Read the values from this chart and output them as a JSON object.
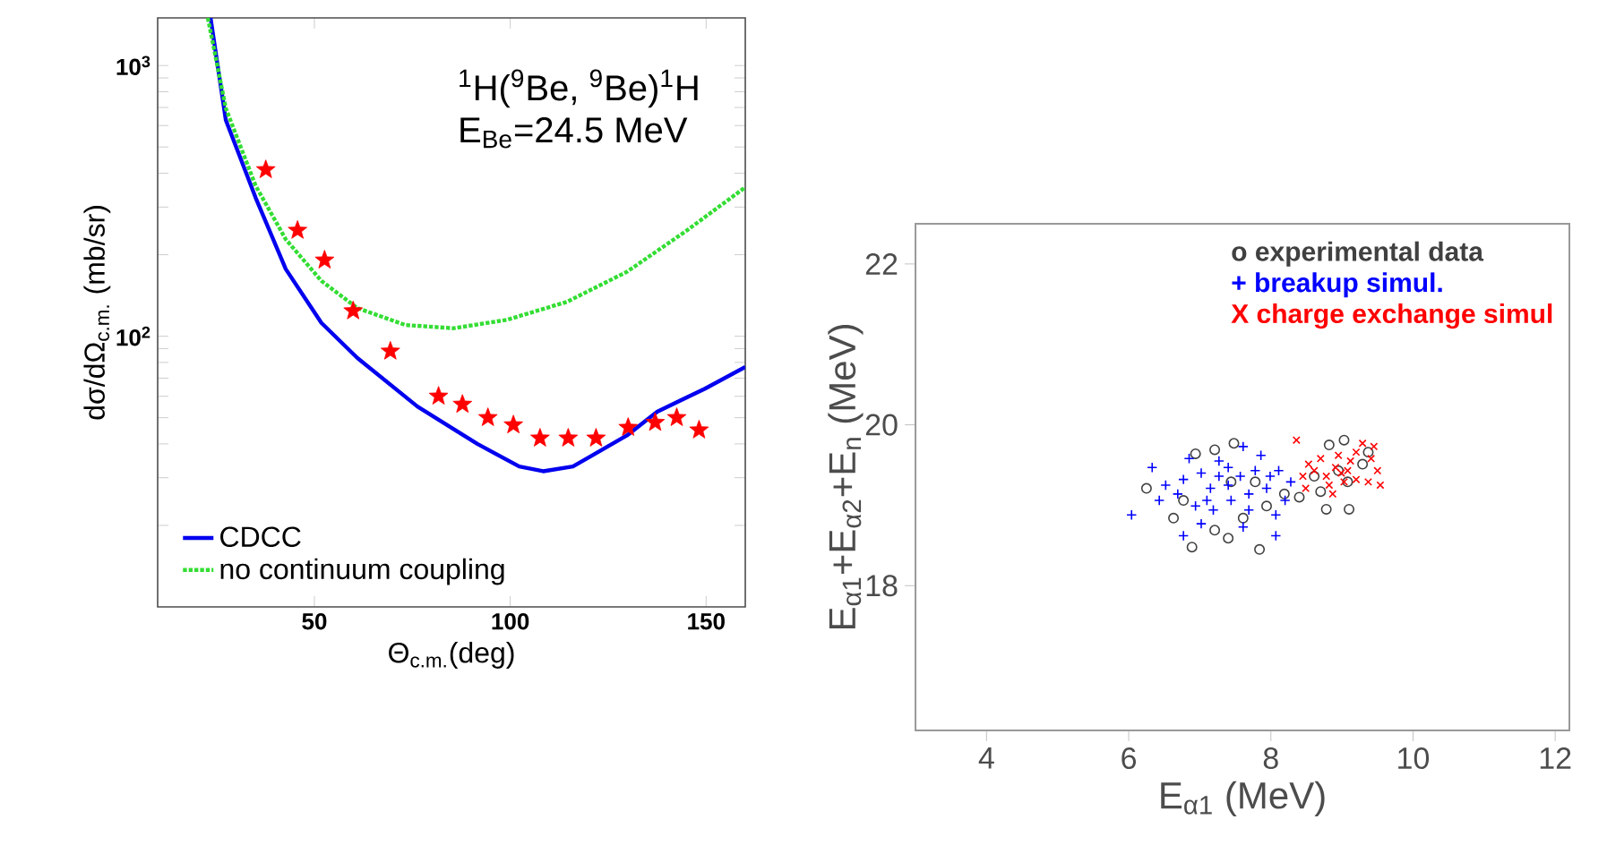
{
  "chart_data": [
    {
      "type": "line",
      "log": "y",
      "xlabel": "Θ$_{c.m.}$(deg)",
      "ylabel": "dσ/dΩ$_{c.m.}$ (mb/sr)",
      "annotations": [
        "$^{1}$H($^{9}$Be, $^{9}$Be)$^{1}$H",
        "E$_{Be}$=24.5 MeV"
      ],
      "xlim": [
        10,
        160
      ],
      "ylim": [
        10,
        1500
      ],
      "xticks": [
        50,
        100,
        150
      ],
      "yticks": [
        {
          "value": 20,
          "label": null
        },
        {
          "value": 30,
          "label": null
        },
        {
          "value": 40,
          "label": null
        },
        {
          "value": 50,
          "label": null
        },
        {
          "value": 60,
          "label": null
        },
        {
          "value": 70,
          "label": null
        },
        {
          "value": 80,
          "label": null
        },
        {
          "value": 90,
          "label": null
        },
        {
          "value": 100,
          "label": "10$^{2}$"
        },
        {
          "value": 200,
          "label": null
        },
        {
          "value": 300,
          "label": null
        },
        {
          "value": 400,
          "label": null
        },
        {
          "value": 500,
          "label": null
        },
        {
          "value": 600,
          "label": null
        },
        {
          "value": 700,
          "label": null
        },
        {
          "value": 800,
          "label": null
        },
        {
          "value": 900,
          "label": null
        },
        {
          "value": 1000,
          "label": "10$^{3}$"
        }
      ],
      "legend": "bottom left",
      "series": [
        {
          "name": "CDCC",
          "type": "line",
          "line_style": "solid",
          "color": "#0000ee",
          "x": [
            23.5,
            27.4,
            35,
            42.7,
            51.8,
            61,
            76.3,
            91.6,
            102.3,
            108.4,
            116,
            129.8,
            137.5,
            149.7,
            160
          ],
          "values": [
            1500,
            628,
            325,
            177,
            112,
            83,
            55,
            40,
            33,
            31.7,
            33,
            43,
            52.6,
            64,
            77
          ]
        },
        {
          "name": "no continuum coupling",
          "type": "line",
          "line_style": "dotted",
          "color": "#33dd33",
          "x": [
            22.8,
            27.4,
            35,
            42.7,
            51.8,
            61,
            73.2,
            85.5,
            99.2,
            114.5,
            129.8,
            145.1,
            160
          ],
          "values": [
            1500,
            695,
            360,
            228,
            160,
            127,
            110,
            107,
            115,
            134,
            173,
            246,
            355
          ]
        },
        {
          "type": "scatter",
          "marker": "star",
          "color": "#ff0000",
          "x": [
            37.6,
            45.7,
            52.6,
            59.9,
            69.4,
            81.7,
            87.8,
            94.3,
            100.8,
            107.6,
            114.8,
            121.9,
            130.1,
            137,
            142.5,
            148.2
          ],
          "values": [
            412,
            246,
            191,
            124,
            88,
            60,
            56,
            50,
            47,
            42,
            42,
            42,
            46,
            48,
            50,
            45
          ]
        }
      ]
    },
    {
      "type": "scatter",
      "xlabel": "E$_{α1}$ (MeV)",
      "ylabel": "E$_{α1}$+E$_{α2}$+E$_{n}$ (MeV)",
      "xlim": [
        3,
        12.2
      ],
      "ylim": [
        16.2,
        22.5
      ],
      "xticks": [
        4,
        6,
        8,
        10,
        12
      ],
      "yticks": [
        18,
        20,
        22
      ],
      "legend": "top right",
      "series": [
        {
          "name": "o experimental data",
          "marker": "circle",
          "color": "#404040",
          "x": [
            6.25,
            6.63,
            6.94,
            7.21,
            7.48,
            6.89,
            7.4,
            7.84,
            7.21,
            7.61,
            7.94,
            8.19,
            8.4,
            8.82,
            9.03,
            8.7,
            8.78,
            9.1,
            9.08,
            9.29,
            9.37,
            6.77,
            7.44,
            7.78,
            8.61,
            8.95
          ],
          "values": [
            19.21,
            18.84,
            19.64,
            19.69,
            19.77,
            18.48,
            18.59,
            18.45,
            18.69,
            18.84,
            18.99,
            19.14,
            19.1,
            19.75,
            19.81,
            19.17,
            18.95,
            18.95,
            19.29,
            19.51,
            19.66,
            19.06,
            19.29,
            19.29,
            19.36,
            19.43
          ]
        },
        {
          "name": "+ breakup simul.",
          "marker": "plus",
          "color": "#0000ff",
          "x": [
            6.04,
            6.33,
            6.52,
            6.77,
            7.02,
            7.15,
            7.27,
            7.4,
            7.61,
            7.86,
            8.11,
            8.28,
            8.2,
            8.07,
            8.07,
            7.61,
            6.77,
            7.02,
            7.19,
            7.44,
            7.69,
            7.94,
            6.94,
            6.69,
            6.43,
            7.57,
            7.78,
            7.27,
            7.1,
            7.4,
            7.69,
            7.99,
            6.85
          ],
          "values": [
            18.88,
            19.47,
            19.25,
            19.32,
            19.4,
            19.21,
            19.36,
            19.47,
            19.73,
            19.62,
            19.43,
            19.29,
            19.06,
            18.88,
            18.62,
            18.73,
            18.62,
            18.77,
            18.94,
            19.06,
            19.14,
            19.21,
            18.99,
            19.14,
            19.06,
            19.36,
            19.43,
            19.55,
            19.06,
            19.25,
            18.94,
            19.36,
            19.58
          ]
        },
        {
          "name": "X charge exchange simul",
          "marker": "cross",
          "color": "#ff0000",
          "x": [
            8.36,
            8.53,
            8.45,
            8.61,
            8.78,
            8.91,
            8.99,
            9.12,
            9.2,
            9.29,
            9.41,
            9.5,
            9.54,
            9.37,
            9.2,
            9.03,
            8.82,
            8.49,
            8.7,
            8.95,
            9.45,
            9.08,
            8.87
          ],
          "values": [
            19.81,
            19.51,
            19.36,
            19.43,
            19.36,
            19.47,
            19.4,
            19.55,
            19.66,
            19.77,
            19.58,
            19.43,
            19.25,
            19.29,
            19.32,
            19.29,
            19.25,
            19.21,
            19.58,
            19.62,
            19.73,
            19.43,
            19.14
          ]
        }
      ]
    }
  ]
}
